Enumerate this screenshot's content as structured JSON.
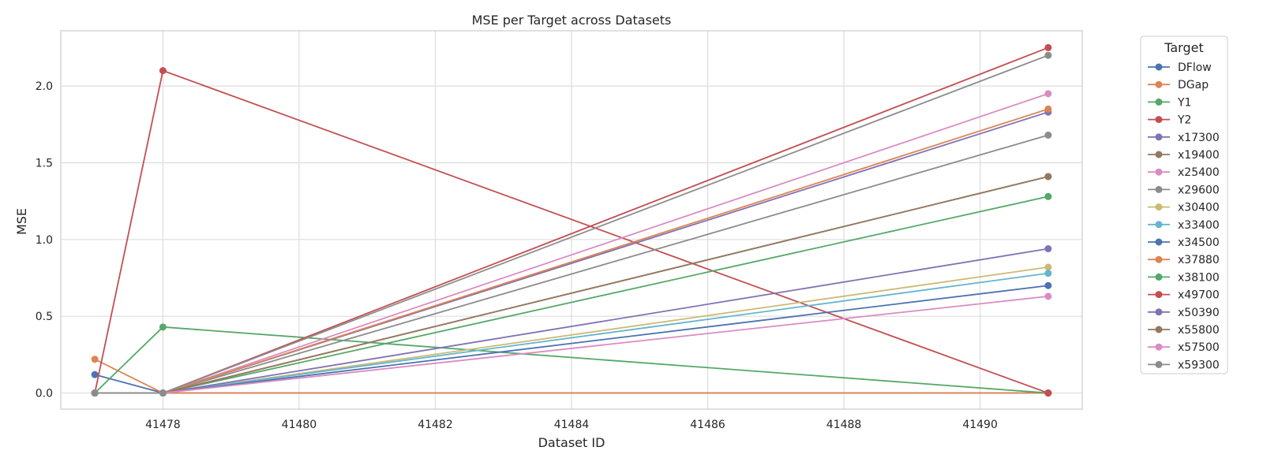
{
  "chart_data": {
    "type": "line",
    "title": "MSE per Target across Datasets",
    "xlabel": "Dataset ID",
    "ylabel": "MSE",
    "xlim": [
      41476.5,
      41491.5
    ],
    "ylim": [
      -0.105,
      2.36
    ],
    "x_ticks": [
      41478,
      41480,
      41482,
      41484,
      41486,
      41488,
      41490
    ],
    "y_ticks": [
      0.0,
      0.5,
      1.0,
      1.5,
      2.0
    ],
    "y_tick_labels": [
      "0.0",
      "0.5",
      "1.0",
      "1.5",
      "2.0"
    ],
    "grid": true,
    "legend_title": "Target",
    "legend_position": "outside-right",
    "x": [
      41477,
      41478,
      41491
    ],
    "series": [
      {
        "name": "DFlow",
        "color": "#4c72b0",
        "values": [
          0.12,
          0.0,
          0.0
        ]
      },
      {
        "name": "DGap",
        "color": "#dd8452",
        "values": [
          0.22,
          0.0,
          0.0
        ]
      },
      {
        "name": "Y1",
        "color": "#55a868",
        "values": [
          0.0,
          0.43,
          0.0
        ]
      },
      {
        "name": "Y2",
        "color": "#c44e52",
        "values": [
          0.0,
          2.1,
          0.0
        ]
      },
      {
        "name": "x17300",
        "color": "#8172b3",
        "values": [
          0.0,
          0.0,
          1.83
        ]
      },
      {
        "name": "x19400",
        "color": "#937860",
        "values": [
          0.0,
          0.0,
          1.41
        ]
      },
      {
        "name": "x25400",
        "color": "#da8bc3",
        "values": [
          0.0,
          0.0,
          1.95
        ]
      },
      {
        "name": "x29600",
        "color": "#8c8c8c",
        "values": [
          0.0,
          0.0,
          1.68
        ]
      },
      {
        "name": "x30400",
        "color": "#ccb974",
        "values": [
          0.0,
          0.0,
          0.82
        ]
      },
      {
        "name": "x33400",
        "color": "#64b5cd",
        "values": [
          0.0,
          0.0,
          0.78
        ]
      },
      {
        "name": "x34500",
        "color": "#4c72b0",
        "values": [
          0.0,
          0.0,
          0.7
        ]
      },
      {
        "name": "x37880",
        "color": "#dd8452",
        "values": [
          0.0,
          0.0,
          1.85
        ]
      },
      {
        "name": "x38100",
        "color": "#55a868",
        "values": [
          0.0,
          0.0,
          1.28
        ]
      },
      {
        "name": "x49700",
        "color": "#c44e52",
        "values": [
          0.0,
          0.0,
          2.25
        ]
      },
      {
        "name": "x50390",
        "color": "#8172b3",
        "values": [
          0.0,
          0.0,
          0.94
        ]
      },
      {
        "name": "x55800",
        "color": "#937860",
        "values": [
          0.0,
          0.0,
          1.41
        ]
      },
      {
        "name": "x57500",
        "color": "#da8bc3",
        "values": [
          0.0,
          0.0,
          0.63
        ]
      },
      {
        "name": "x59300",
        "color": "#8c8c8c",
        "values": [
          0.0,
          0.0,
          2.2
        ]
      }
    ]
  }
}
